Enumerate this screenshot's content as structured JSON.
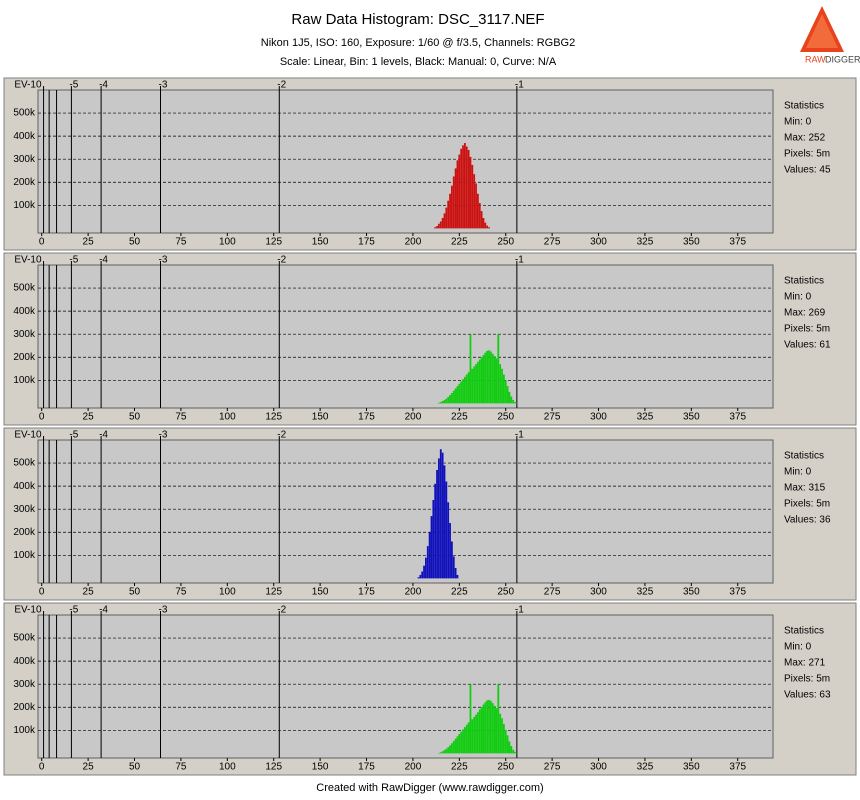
{
  "title": "Raw Data Histogram: DSC_3117.NEF",
  "subtitle": "Nikon 1J5, ISO: 160, Exposure: 1/60 @ f/3.5, Channels: RGBG2",
  "subtitle2": "Scale: Linear, Bin: 1 levels, Black: Manual: 0, Curve: N/A",
  "footer": "Created with RawDigger (www.rawdigger.com)",
  "logo": [
    "RAW",
    "DIGGER"
  ],
  "chart_data": [
    {
      "type": "bar",
      "color": "#cc1111",
      "x": [
        212,
        213,
        214,
        215,
        216,
        217,
        218,
        219,
        220,
        221,
        222,
        223,
        224,
        225,
        226,
        227,
        228,
        229,
        230,
        231,
        232,
        233,
        234,
        235,
        236,
        237,
        238,
        239,
        240,
        241
      ],
      "values": [
        5000,
        10000,
        20000,
        30000,
        45000,
        65000,
        90000,
        120000,
        150000,
        185000,
        225000,
        260000,
        295000,
        320000,
        345000,
        360000,
        370000,
        355000,
        340000,
        310000,
        275000,
        235000,
        195000,
        150000,
        110000,
        75000,
        45000,
        25000,
        12000,
        5000
      ],
      "xlim": [
        -2,
        394
      ],
      "xticks": [
        0,
        25,
        50,
        75,
        100,
        125,
        150,
        175,
        200,
        225,
        250,
        275,
        300,
        325,
        350,
        375
      ],
      "ylim": [
        -20000,
        600000
      ],
      "yticks": [
        {
          "value": 100000,
          "label": "100k"
        },
        {
          "value": 200000,
          "label": "200k"
        },
        {
          "value": 300000,
          "label": "300k"
        },
        {
          "value": 400000,
          "label": "400k"
        },
        {
          "value": 500000,
          "label": "500k"
        }
      ],
      "ev_ticks": [
        {
          "value": 1,
          "label": "EV-10"
        },
        {
          "value": 16,
          "label": "-5"
        },
        {
          "value": 32,
          "label": "-4"
        },
        {
          "value": 64,
          "label": "-3"
        },
        {
          "value": 128,
          "label": "-2"
        },
        {
          "value": 256,
          "label": "-1"
        }
      ],
      "ev_lines": [
        4,
        8
      ],
      "grid": true,
      "statistics": [
        "Statistics",
        "Min: 0",
        "Max: 252",
        "Pixels: 5m",
        "Values: 45"
      ]
    },
    {
      "type": "bar",
      "color": "#11cc11",
      "x": [
        214,
        215,
        216,
        217,
        218,
        219,
        220,
        221,
        222,
        223,
        224,
        225,
        226,
        227,
        228,
        229,
        230,
        231,
        232,
        233,
        234,
        235,
        236,
        237,
        238,
        239,
        240,
        241,
        242,
        243,
        244,
        245,
        246,
        247,
        248,
        249,
        250,
        251,
        252,
        253,
        254,
        255,
        256
      ],
      "values": [
        3000,
        6000,
        10000,
        15000,
        20000,
        28000,
        36000,
        45000,
        55000,
        65000,
        75000,
        85000,
        95000,
        105000,
        115000,
        125000,
        135000,
        300000,
        150000,
        160000,
        170000,
        180000,
        190000,
        200000,
        210000,
        220000,
        228000,
        230000,
        225000,
        215000,
        205000,
        195000,
        300000,
        170000,
        150000,
        125000,
        100000,
        75000,
        50000,
        30000,
        15000,
        6000,
        2000
      ],
      "xlim": [
        -2,
        394
      ],
      "xticks": [
        0,
        25,
        50,
        75,
        100,
        125,
        150,
        175,
        200,
        225,
        250,
        275,
        300,
        325,
        350,
        375
      ],
      "ylim": [
        -20000,
        600000
      ],
      "yticks": [
        {
          "value": 100000,
          "label": "100k"
        },
        {
          "value": 200000,
          "label": "200k"
        },
        {
          "value": 300000,
          "label": "300k"
        },
        {
          "value": 400000,
          "label": "400k"
        },
        {
          "value": 500000,
          "label": "500k"
        }
      ],
      "ev_ticks": [
        {
          "value": 1,
          "label": "EV-10"
        },
        {
          "value": 16,
          "label": "-5"
        },
        {
          "value": 32,
          "label": "-4"
        },
        {
          "value": 64,
          "label": "-3"
        },
        {
          "value": 128,
          "label": "-2"
        },
        {
          "value": 256,
          "label": "-1"
        }
      ],
      "ev_lines": [
        4,
        8
      ],
      "grid": true,
      "statistics": [
        "Statistics",
        "Min: 0",
        "Max: 269",
        "Pixels: 5m",
        "Values: 61"
      ]
    },
    {
      "type": "bar",
      "color": "#1111bb",
      "x": [
        203,
        204,
        205,
        206,
        207,
        208,
        209,
        210,
        211,
        212,
        213,
        214,
        215,
        216,
        217,
        218,
        219,
        220,
        221,
        222,
        223,
        224
      ],
      "values": [
        5000,
        15000,
        30000,
        55000,
        90000,
        140000,
        200000,
        270000,
        340000,
        410000,
        470000,
        520000,
        560000,
        545000,
        490000,
        420000,
        330000,
        240000,
        160000,
        95000,
        45000,
        15000
      ],
      "xlim": [
        -2,
        394
      ],
      "xticks": [
        0,
        25,
        50,
        75,
        100,
        125,
        150,
        175,
        200,
        225,
        250,
        275,
        300,
        325,
        350,
        375
      ],
      "ylim": [
        -20000,
        600000
      ],
      "yticks": [
        {
          "value": 100000,
          "label": "100k"
        },
        {
          "value": 200000,
          "label": "200k"
        },
        {
          "value": 300000,
          "label": "300k"
        },
        {
          "value": 400000,
          "label": "400k"
        },
        {
          "value": 500000,
          "label": "500k"
        }
      ],
      "ev_ticks": [
        {
          "value": 1,
          "label": "EV-10"
        },
        {
          "value": 16,
          "label": "-5"
        },
        {
          "value": 32,
          "label": "-4"
        },
        {
          "value": 64,
          "label": "-3"
        },
        {
          "value": 128,
          "label": "-2"
        },
        {
          "value": 256,
          "label": "-1"
        }
      ],
      "ev_lines": [
        4,
        8
      ],
      "grid": true,
      "statistics": [
        "Statistics",
        "Min: 0",
        "Max: 315",
        "Pixels: 5m",
        "Values: 36"
      ]
    },
    {
      "type": "bar",
      "color": "#11cc11",
      "x": [
        214,
        215,
        216,
        217,
        218,
        219,
        220,
        221,
        222,
        223,
        224,
        225,
        226,
        227,
        228,
        229,
        230,
        231,
        232,
        233,
        234,
        235,
        236,
        237,
        238,
        239,
        240,
        241,
        242,
        243,
        244,
        245,
        246,
        247,
        248,
        249,
        250,
        251,
        252,
        253,
        254,
        255,
        256
      ],
      "values": [
        2000,
        5000,
        9000,
        14000,
        20000,
        27000,
        35000,
        44000,
        54000,
        64000,
        74000,
        84000,
        94000,
        104000,
        114000,
        124000,
        134000,
        300000,
        148000,
        158000,
        168000,
        178000,
        190000,
        200000,
        212000,
        222000,
        230000,
        232000,
        228000,
        218000,
        206000,
        196000,
        300000,
        172000,
        152000,
        128000,
        102000,
        78000,
        52000,
        32000,
        16000,
        7000,
        2000
      ],
      "xlim": [
        -2,
        394
      ],
      "xticks": [
        0,
        25,
        50,
        75,
        100,
        125,
        150,
        175,
        200,
        225,
        250,
        275,
        300,
        325,
        350,
        375
      ],
      "ylim": [
        -20000,
        600000
      ],
      "yticks": [
        {
          "value": 100000,
          "label": "100k"
        },
        {
          "value": 200000,
          "label": "200k"
        },
        {
          "value": 300000,
          "label": "300k"
        },
        {
          "value": 400000,
          "label": "400k"
        },
        {
          "value": 500000,
          "label": "500k"
        }
      ],
      "ev_ticks": [
        {
          "value": 1,
          "label": "EV-10"
        },
        {
          "value": 16,
          "label": "-5"
        },
        {
          "value": 32,
          "label": "-4"
        },
        {
          "value": 64,
          "label": "-3"
        },
        {
          "value": 128,
          "label": "-2"
        },
        {
          "value": 256,
          "label": "-1"
        }
      ],
      "ev_lines": [
        4,
        8
      ],
      "grid": true,
      "statistics": [
        "Statistics",
        "Min: 0",
        "Max: 271",
        "Pixels: 5m",
        "Values: 63"
      ]
    }
  ]
}
